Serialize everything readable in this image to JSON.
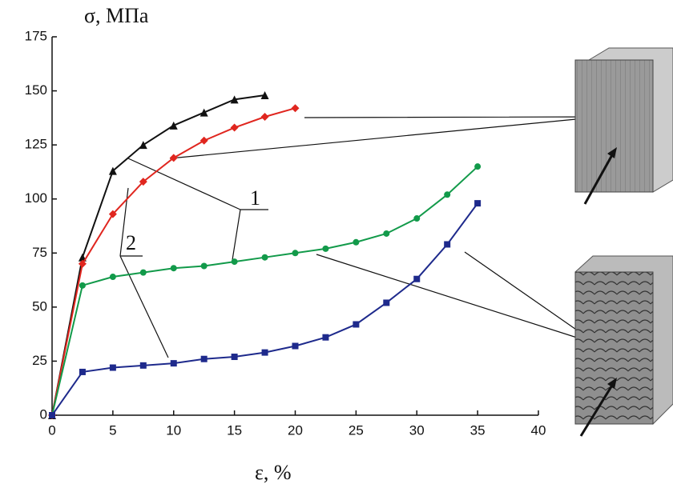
{
  "chart_data": {
    "type": "line",
    "y_label": "σ, МПа",
    "x_label": "ε, %",
    "annotations": [
      "1",
      "2"
    ],
    "xlim": [
      0,
      40
    ],
    "xticks": [
      0,
      5,
      10,
      15,
      20,
      25,
      30,
      35,
      40
    ],
    "ylim": [
      0,
      175
    ],
    "yticks": [
      0,
      25,
      50,
      75,
      100,
      125,
      150,
      175
    ],
    "series": [
      {
        "color": "#111111",
        "marker": "triangle",
        "x": [
          0,
          2.5,
          5,
          7.5,
          10,
          12.5,
          15,
          17.5
        ],
        "values": [
          0,
          73,
          113,
          125,
          134,
          140,
          146,
          148
        ]
      },
      {
        "color": "#e0261f",
        "marker": "diamond",
        "x": [
          0,
          2.5,
          5,
          7.5,
          10,
          12.5,
          15,
          17.5,
          20
        ],
        "values": [
          0,
          70,
          93,
          108,
          119,
          127,
          133,
          138,
          142
        ]
      },
      {
        "color": "#129a4a",
        "marker": "circle",
        "x": [
          0,
          2.5,
          5,
          7.5,
          10,
          12.5,
          15,
          17.5,
          20,
          22.5,
          25,
          27.5,
          30,
          32.5,
          35
        ],
        "values": [
          0,
          60,
          64,
          66,
          68,
          69,
          71,
          73,
          75,
          77,
          80,
          84,
          91,
          102,
          115
        ]
      },
      {
        "color": "#1e2a8c",
        "marker": "square",
        "x": [
          0,
          2.5,
          5,
          7.5,
          10,
          12.5,
          15,
          17.5,
          20,
          22.5,
          25,
          27.5,
          30,
          32.5,
          35
        ],
        "values": [
          0,
          20,
          22,
          23,
          24,
          26,
          27,
          29,
          32,
          36,
          42,
          52,
          63,
          79,
          98
        ]
      }
    ]
  }
}
